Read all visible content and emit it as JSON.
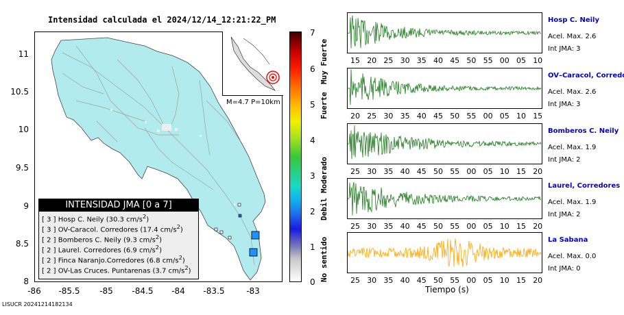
{
  "map": {
    "title": "Intensidad calculada el 2024/12/14_12:21:22_PM",
    "y_ticks": [
      "11",
      "10.5",
      "10",
      "9.5",
      "9",
      "8.5",
      "8"
    ],
    "x_ticks": [
      "-86",
      "-85.5",
      "-85",
      "-84.5",
      "-84",
      "-83.5",
      "-83"
    ],
    "inset_label": "M=4.7 P=10km",
    "colors": {
      "land": "#b2ebee",
      "roads": "#a0a0a0",
      "station_blue": "#1e90ff"
    }
  },
  "legend": {
    "header": "INTENSIDAD JMA [0 a 7]",
    "rows": [
      {
        "level": "3",
        "name": "Hosp C. Neily",
        "value": "30.3"
      },
      {
        "level": "3",
        "name": "OV-Caracol. Corredores",
        "value": "17.4"
      },
      {
        "level": "2",
        "name": "Bomberos C. Neily",
        "value": "9.3"
      },
      {
        "level": "2",
        "name": "Laurel. Corredores",
        "value": "6.9"
      },
      {
        "level": "2",
        "name": "Finca Naranjo.Corredores",
        "value": "6.8"
      },
      {
        "level": "2",
        "name": "OV-Las Cruces. Puntarenas",
        "value": "3.7"
      }
    ],
    "unit_base": "cm/s",
    "unit_exp": "2"
  },
  "colorbar": {
    "numbers": [
      "7",
      "6",
      "5",
      "4",
      "3",
      "2",
      "1",
      "0"
    ],
    "words": [
      "Muy Fuerte",
      "Fuerte",
      "Moderado",
      "Debil",
      "No sentido"
    ]
  },
  "traces": [
    {
      "name": "Hosp C. Neily",
      "acel": "Acel. Max. 2.6",
      "int": "Int JMA: 3",
      "color": "#1a7a1a",
      "ticks": [
        "15",
        "20",
        "25",
        "30",
        "35",
        "40",
        "45",
        "50",
        "55",
        "00",
        "05",
        "10"
      ]
    },
    {
      "name": "OV–Caracol, Corredore",
      "acel": "Acel. Max. 2.6",
      "int": "Int JMA: 3",
      "color": "#1a7a1a",
      "ticks": [
        "20",
        "25",
        "30",
        "35",
        "40",
        "45",
        "50",
        "55",
        "00",
        "05",
        "10",
        "15"
      ]
    },
    {
      "name": "Bomberos C. Neily",
      "acel": "Acel. Max. 1.9",
      "int": "Int JMA: 2",
      "color": "#1a7a1a",
      "ticks": [
        "25",
        "30",
        "35",
        "40",
        "45",
        "50",
        "55",
        "00",
        "05",
        "10",
        "15",
        "20"
      ]
    },
    {
      "name": "Laurel, Corredores",
      "acel": "Acel. Max. 1.9",
      "int": "Int JMA: 2",
      "color": "#1a7a1a",
      "ticks": [
        "25",
        "30",
        "35",
        "40",
        "45",
        "50",
        "55",
        "00",
        "05",
        "10",
        "15",
        "20"
      ]
    },
    {
      "name": "La Sabana",
      "acel": "Acel. Max. 0.0",
      "int": "Int JMA: 0",
      "color": "#ffa500",
      "ticks": [
        "25",
        "30",
        "35",
        "40",
        "45",
        "50",
        "55",
        "00",
        "05",
        "10",
        "15",
        "20"
      ]
    }
  ],
  "xlabel": "Tiempo (s)",
  "footer": "LISUCR 20241214182134"
}
